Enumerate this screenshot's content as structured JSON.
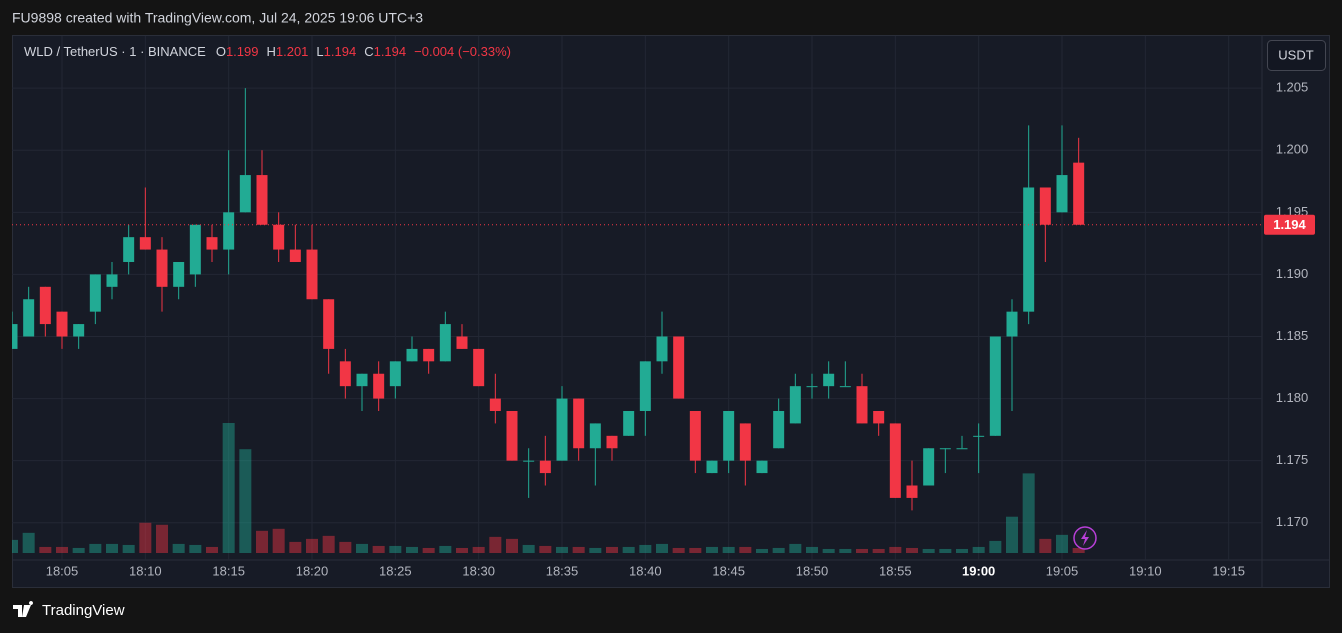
{
  "attribution": "FU9898 created with TradingView.com, Jul 24, 2025 19:06 UTC+3",
  "chart_data": {
    "type": "candlestick",
    "symbol": "WLD / TetherUS · 1 · BINANCE",
    "legend": [
      {
        "label": "O",
        "value": "1.199"
      },
      {
        "label": "H",
        "value": "1.201"
      },
      {
        "label": "L",
        "value": "1.194"
      },
      {
        "label": "C",
        "value": "1.194"
      }
    ],
    "change": "−0.004 (−0.33%)",
    "currency": "USDT",
    "up_color": "#22ab94",
    "down_color": "#f23645",
    "grid": true,
    "last_price": 1.194,
    "x": [
      "18:02",
      "18:03",
      "18:04",
      "18:05",
      "18:06",
      "18:07",
      "18:08",
      "18:09",
      "18:10",
      "18:11",
      "18:12",
      "18:13",
      "18:14",
      "18:15",
      "18:16",
      "18:17",
      "18:18",
      "18:19",
      "18:20",
      "18:21",
      "18:22",
      "18:23",
      "18:24",
      "18:25",
      "18:26",
      "18:27",
      "18:28",
      "18:29",
      "18:30",
      "18:31",
      "18:32",
      "18:33",
      "18:34",
      "18:35",
      "18:36",
      "18:37",
      "18:38",
      "18:39",
      "18:40",
      "18:41",
      "18:42",
      "18:43",
      "18:44",
      "18:45",
      "18:46",
      "18:47",
      "18:48",
      "18:49",
      "18:50",
      "18:51",
      "18:52",
      "18:53",
      "18:54",
      "18:55",
      "18:56",
      "18:57",
      "18:58",
      "18:59",
      "19:00",
      "19:01",
      "19:02",
      "19:03",
      "19:04",
      "19:05",
      "19:06"
    ],
    "open": [
      1.184,
      1.185,
      1.189,
      1.187,
      1.185,
      1.187,
      1.189,
      1.191,
      1.193,
      1.192,
      1.189,
      1.19,
      1.193,
      1.192,
      1.195,
      1.198,
      1.194,
      1.192,
      1.192,
      1.188,
      1.183,
      1.181,
      1.182,
      1.181,
      1.183,
      1.184,
      1.183,
      1.185,
      1.184,
      1.18,
      1.179,
      1.175,
      1.175,
      1.175,
      1.18,
      1.176,
      1.177,
      1.177,
      1.179,
      1.183,
      1.185,
      1.179,
      1.174,
      1.175,
      1.178,
      1.174,
      1.176,
      1.178,
      1.181,
      1.181,
      1.181,
      1.181,
      1.179,
      1.178,
      1.173,
      1.173,
      1.176,
      1.176,
      1.177,
      1.177,
      1.185,
      1.187,
      1.197,
      1.195,
      1.199
    ],
    "high": [
      1.187,
      1.189,
      1.189,
      1.187,
      1.186,
      1.19,
      1.191,
      1.194,
      1.197,
      1.193,
      1.191,
      1.194,
      1.194,
      1.2,
      1.205,
      1.2,
      1.195,
      1.194,
      1.194,
      1.188,
      1.184,
      1.182,
      1.183,
      1.183,
      1.185,
      1.184,
      1.187,
      1.186,
      1.184,
      1.182,
      1.179,
      1.176,
      1.177,
      1.181,
      1.18,
      1.178,
      1.177,
      1.179,
      1.183,
      1.187,
      1.185,
      1.179,
      1.175,
      1.179,
      1.178,
      1.175,
      1.18,
      1.182,
      1.182,
      1.183,
      1.183,
      1.182,
      1.179,
      1.178,
      1.175,
      1.176,
      1.176,
      1.177,
      1.178,
      1.185,
      1.188,
      1.202,
      1.197,
      1.202,
      1.201
    ],
    "low": [
      1.184,
      1.185,
      1.185,
      1.184,
      1.184,
      1.186,
      1.188,
      1.19,
      1.192,
      1.187,
      1.188,
      1.189,
      1.191,
      1.19,
      1.195,
      1.194,
      1.191,
      1.191,
      1.188,
      1.182,
      1.18,
      1.179,
      1.179,
      1.18,
      1.183,
      1.182,
      1.183,
      1.184,
      1.181,
      1.178,
      1.175,
      1.172,
      1.173,
      1.175,
      1.175,
      1.173,
      1.175,
      1.177,
      1.177,
      1.182,
      1.18,
      1.174,
      1.174,
      1.174,
      1.173,
      1.174,
      1.176,
      1.178,
      1.18,
      1.18,
      1.181,
      1.178,
      1.177,
      1.172,
      1.171,
      1.173,
      1.174,
      1.176,
      1.174,
      1.177,
      1.179,
      1.186,
      1.191,
      1.195,
      1.194
    ],
    "close": [
      1.186,
      1.188,
      1.186,
      1.185,
      1.186,
      1.19,
      1.19,
      1.193,
      1.192,
      1.189,
      1.191,
      1.194,
      1.192,
      1.195,
      1.198,
      1.194,
      1.192,
      1.191,
      1.188,
      1.184,
      1.181,
      1.182,
      1.18,
      1.183,
      1.184,
      1.183,
      1.186,
      1.184,
      1.181,
      1.179,
      1.175,
      1.175,
      1.174,
      1.18,
      1.176,
      1.178,
      1.176,
      1.179,
      1.183,
      1.185,
      1.18,
      1.175,
      1.175,
      1.179,
      1.175,
      1.175,
      1.179,
      1.181,
      1.181,
      1.182,
      1.181,
      1.178,
      1.178,
      1.172,
      1.172,
      1.176,
      1.176,
      1.176,
      1.177,
      1.185,
      1.187,
      1.197,
      1.194,
      1.198,
      1.194
    ],
    "volume": [
      13,
      20,
      6,
      6,
      5,
      9,
      9,
      8,
      30,
      28,
      9,
      8,
      6,
      129,
      103,
      22,
      24,
      11,
      14,
      17,
      11,
      9,
      7,
      7,
      6,
      5,
      7,
      5,
      6,
      16,
      14,
      8,
      7,
      6,
      6,
      5,
      6,
      6,
      8,
      9,
      5,
      5,
      6,
      6,
      6,
      4,
      5,
      9,
      6,
      4,
      4,
      4,
      4,
      6,
      5,
      4,
      4,
      4,
      6,
      12,
      36,
      79,
      14,
      18,
      5
    ],
    "ylim": [
      1.167,
      1.2092
    ],
    "yticks": [
      {
        "value": 1.17,
        "label": "1.170"
      },
      1.175,
      {
        "value": 1.18,
        "label": "1.180"
      },
      1.185,
      {
        "value": 1.19,
        "label": "1.190"
      },
      1.195,
      {
        "value": 1.2,
        "label": "1.200"
      },
      1.205
    ],
    "xlim": [
      "18:02",
      "19:17"
    ],
    "xticks": [
      "18:05",
      "18:10",
      "18:15",
      "18:20",
      "18:25",
      "18:30",
      "18:35",
      "18:40",
      "18:45",
      "18:50",
      "18:55",
      "19:00",
      "19:05",
      "19:10",
      "19:15"
    ]
  },
  "footer": {
    "brand": "TradingView"
  }
}
